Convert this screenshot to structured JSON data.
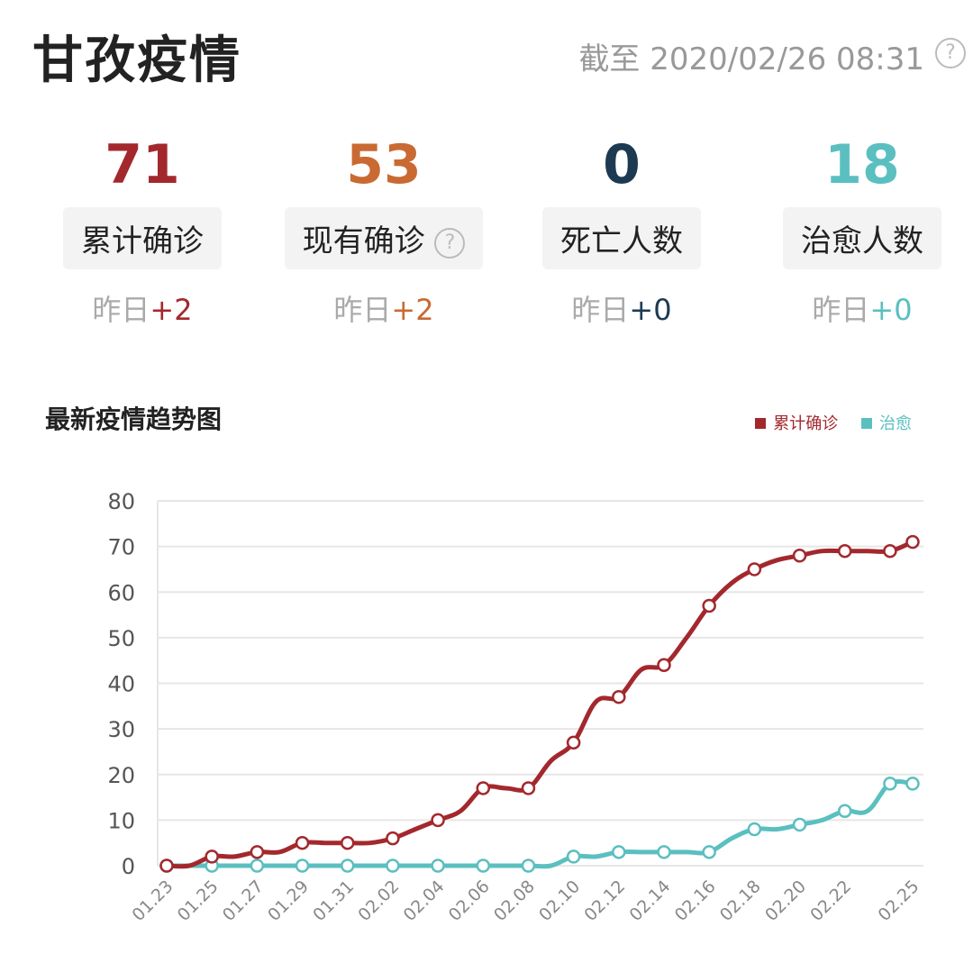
{
  "header": {
    "title": "甘孜疫情",
    "as_of": "截至 2020/02/26 08:31",
    "help_icon": "question-circle-icon"
  },
  "stats": [
    {
      "value": "71",
      "label": "累计确诊",
      "yesterday_label": "昨日",
      "delta": "+2",
      "color": "#a3282d"
    },
    {
      "value": "53",
      "label": "现有确诊",
      "yesterday_label": "昨日",
      "delta": "+2",
      "color": "#c96a32",
      "help": true
    },
    {
      "value": "0",
      "label": "死亡人数",
      "yesterday_label": "昨日",
      "delta": "+0",
      "color": "#1d3a52"
    },
    {
      "value": "18",
      "label": "治愈人数",
      "yesterday_label": "昨日",
      "delta": "+0",
      "color": "#5bbfc0"
    }
  ],
  "chart_data": {
    "type": "line",
    "title": "最新疫情趋势图",
    "legend_position": "top-right",
    "grid": true,
    "ylim": [
      0,
      80
    ],
    "yticks": [
      0,
      10,
      20,
      30,
      40,
      50,
      60,
      70,
      80
    ],
    "x": [
      "01.23",
      "01.24",
      "01.25",
      "01.26",
      "01.27",
      "01.28",
      "01.29",
      "01.30",
      "01.31",
      "02.01",
      "02.02",
      "02.03",
      "02.04",
      "02.05",
      "02.06",
      "02.07",
      "02.08",
      "02.09",
      "02.10",
      "02.11",
      "02.12",
      "02.13",
      "02.14",
      "02.15",
      "02.16",
      "02.17",
      "02.18",
      "02.19",
      "02.20",
      "02.21",
      "02.22",
      "02.23",
      "02.24",
      "02.25"
    ],
    "xtick_labels": [
      "01.23",
      "01.25",
      "01.27",
      "01.29",
      "01.31",
      "02.02",
      "02.04",
      "02.06",
      "02.08",
      "02.10",
      "02.12",
      "02.14",
      "02.16",
      "02.18",
      "02.20",
      "02.22",
      "02.25"
    ],
    "series": [
      {
        "name": "累计确诊",
        "color": "#a3282d",
        "values": [
          0,
          0,
          2,
          2,
          3,
          3,
          5,
          5,
          5,
          5,
          6,
          8,
          10,
          12,
          17,
          17,
          17,
          23,
          27,
          36,
          37,
          43,
          44,
          50,
          57,
          62,
          65,
          67,
          68,
          69,
          69,
          69,
          69,
          71
        ]
      },
      {
        "name": "治愈",
        "color": "#5bbfc0",
        "values": [
          0,
          0,
          0,
          0,
          0,
          0,
          0,
          0,
          0,
          0,
          0,
          0,
          0,
          0,
          0,
          0,
          0,
          0,
          2,
          2,
          3,
          3,
          3,
          3,
          3,
          6,
          8,
          8,
          9,
          10,
          12,
          12,
          18,
          18
        ]
      }
    ]
  }
}
